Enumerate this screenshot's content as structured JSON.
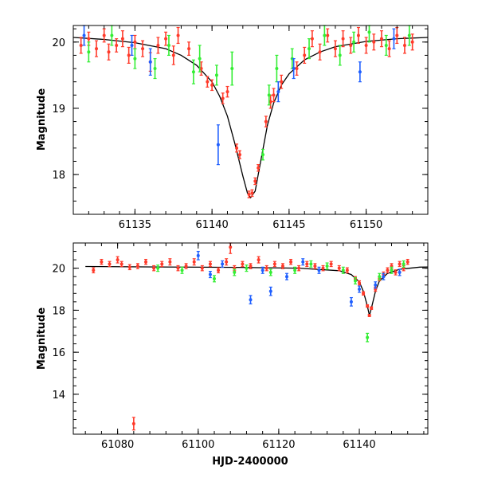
{
  "chart_data": [
    {
      "type": "scatter",
      "xlabel": "",
      "ylabel": "Magnitude",
      "xlim": [
        61131,
        61154
      ],
      "ylim": [
        20.25,
        17.4
      ],
      "y_inverted": true,
      "xticks": [
        61135,
        61140,
        61145,
        61150
      ],
      "yticks": [
        18,
        19,
        20
      ],
      "model_curve": {
        "description_free": true,
        "t0": 61142.5,
        "baseline": 20.1,
        "peak": 17.65,
        "x": [
          61131,
          61133,
          61135,
          61137,
          61138,
          61139,
          61140,
          61140.5,
          61141,
          61141.5,
          61142,
          61142.3,
          61142.5,
          61142.8,
          61143.2,
          61143.6,
          61144,
          61144.5,
          61145,
          61146,
          61147,
          61148,
          61150,
          61152,
          61154
        ],
        "y": [
          20.07,
          20.04,
          19.99,
          19.9,
          19.8,
          19.65,
          19.4,
          19.18,
          18.88,
          18.45,
          17.98,
          17.72,
          17.65,
          17.75,
          18.25,
          18.75,
          19.08,
          19.35,
          19.52,
          19.73,
          19.85,
          19.93,
          20.01,
          20.05,
          20.07
        ]
      },
      "series": [
        {
          "color": "#ff3a2a",
          "points": [
            [
              61131.5,
              19.95,
              0.12
            ],
            [
              61132.0,
              20.05,
              0.1
            ],
            [
              61132.5,
              19.9,
              0.12
            ],
            [
              61133.0,
              20.1,
              0.1
            ],
            [
              61133.3,
              19.85,
              0.12
            ],
            [
              61133.8,
              19.95,
              0.1
            ],
            [
              61134.2,
              20.05,
              0.12
            ],
            [
              61134.6,
              19.8,
              0.12
            ],
            [
              61135.0,
              20.0,
              0.1
            ],
            [
              61135.5,
              19.9,
              0.12
            ],
            [
              61136.0,
              19.7,
              0.14
            ],
            [
              61136.5,
              19.95,
              0.12
            ],
            [
              61137.0,
              20.05,
              0.1
            ],
            [
              61137.5,
              19.8,
              0.14
            ],
            [
              61137.8,
              20.1,
              0.12
            ],
            [
              61138.5,
              19.9,
              0.1
            ],
            [
              61139.3,
              19.6,
              0.1
            ],
            [
              61139.7,
              19.4,
              0.08
            ],
            [
              61140.0,
              19.35,
              0.08
            ],
            [
              61140.7,
              19.15,
              0.08
            ],
            [
              61141.0,
              19.25,
              0.08
            ],
            [
              61141.6,
              18.4,
              0.06
            ],
            [
              61141.8,
              18.3,
              0.06
            ],
            [
              61142.4,
              17.7,
              0.05
            ],
            [
              61142.6,
              17.72,
              0.05
            ],
            [
              61142.8,
              17.9,
              0.05
            ],
            [
              61143.0,
              18.1,
              0.05
            ],
            [
              61143.5,
              18.8,
              0.08
            ],
            [
              61143.8,
              19.1,
              0.1
            ],
            [
              61144.0,
              19.2,
              0.1
            ],
            [
              61144.5,
              19.4,
              0.1
            ],
            [
              61145.5,
              19.6,
              0.1
            ],
            [
              61146.0,
              19.8,
              0.12
            ],
            [
              61146.5,
              20.05,
              0.12
            ],
            [
              61147.0,
              19.85,
              0.12
            ],
            [
              61147.5,
              20.1,
              0.1
            ],
            [
              61148.0,
              19.9,
              0.12
            ],
            [
              61148.5,
              20.05,
              0.12
            ],
            [
              61149.0,
              19.95,
              0.12
            ],
            [
              61149.5,
              20.1,
              0.12
            ],
            [
              61150.0,
              19.95,
              0.12
            ],
            [
              61150.5,
              20.0,
              0.12
            ],
            [
              61151.0,
              20.05,
              0.12
            ],
            [
              61151.5,
              19.9,
              0.12
            ],
            [
              61152.0,
              20.1,
              0.12
            ],
            [
              61152.5,
              19.95,
              0.12
            ],
            [
              61153.0,
              20.0,
              0.12
            ]
          ]
        },
        {
          "color": "#33ee33",
          "points": [
            [
              61132.0,
              19.85,
              0.15
            ],
            [
              61133.5,
              20.1,
              0.15
            ],
            [
              61135.0,
              19.75,
              0.15
            ],
            [
              61136.3,
              19.6,
              0.15
            ],
            [
              61137.2,
              19.95,
              0.15
            ],
            [
              61138.8,
              19.55,
              0.18
            ],
            [
              61139.2,
              19.75,
              0.2
            ],
            [
              61140.3,
              19.5,
              0.15
            ],
            [
              61141.3,
              19.6,
              0.25
            ],
            [
              61143.3,
              18.3,
              0.08
            ],
            [
              61143.7,
              19.2,
              0.15
            ],
            [
              61144.2,
              19.6,
              0.2
            ],
            [
              61145.2,
              19.75,
              0.15
            ],
            [
              61146.3,
              19.9,
              0.15
            ],
            [
              61147.3,
              20.1,
              0.15
            ],
            [
              61148.3,
              19.8,
              0.15
            ],
            [
              61149.2,
              20.0,
              0.15
            ],
            [
              61150.2,
              20.15,
              0.15
            ],
            [
              61151.3,
              19.95,
              0.15
            ],
            [
              61152.8,
              20.1,
              0.15
            ]
          ]
        },
        {
          "color": "#1f5fff",
          "points": [
            [
              61131.7,
              20.1,
              0.15
            ],
            [
              61134.8,
              19.95,
              0.15
            ],
            [
              61136.0,
              19.7,
              0.2
            ],
            [
              61140.4,
              18.45,
              0.3
            ],
            [
              61144.3,
              19.25,
              0.15
            ],
            [
              61145.3,
              19.6,
              0.15
            ],
            [
              61149.6,
              19.55,
              0.15
            ],
            [
              61151.8,
              20.05,
              0.15
            ]
          ]
        }
      ]
    },
    {
      "type": "scatter",
      "xlabel": "HJD-2400000",
      "ylabel": "Magnitude",
      "xlim": [
        61069,
        61157
      ],
      "ylim": [
        21.2,
        12.1
      ],
      "y_inverted": true,
      "xticks": [
        61080,
        61100,
        61120,
        61140
      ],
      "yticks": [
        14,
        16,
        18,
        20
      ],
      "model_curve": {
        "x": [
          61072,
          61090,
          61110,
          61125,
          61135,
          61138,
          61140,
          61141,
          61142,
          61142.5,
          61143,
          61144,
          61145,
          61147,
          61150,
          61155,
          61157
        ],
        "y": [
          20.08,
          20.06,
          20.04,
          20.0,
          19.88,
          19.7,
          19.35,
          18.9,
          18.2,
          17.75,
          18.1,
          18.9,
          19.4,
          19.75,
          19.95,
          20.05,
          20.06
        ]
      },
      "series": [
        {
          "color": "#ff3a2a",
          "points": [
            [
              61074,
              19.9,
              0.12
            ],
            [
              61076,
              20.3,
              0.12
            ],
            [
              61078,
              20.2,
              0.12
            ],
            [
              61080,
              20.4,
              0.15
            ],
            [
              61081,
              20.2,
              0.12
            ],
            [
              61083,
              20.05,
              0.12
            ],
            [
              61084,
              12.6,
              0.3
            ],
            [
              61085,
              20.1,
              0.12
            ],
            [
              61087,
              20.3,
              0.12
            ],
            [
              61089,
              20.0,
              0.12
            ],
            [
              61091,
              20.2,
              0.12
            ],
            [
              61093,
              20.3,
              0.15
            ],
            [
              61095,
              20.0,
              0.12
            ],
            [
              61097,
              20.1,
              0.12
            ],
            [
              61099,
              20.3,
              0.15
            ],
            [
              61101,
              20.0,
              0.12
            ],
            [
              61103,
              20.2,
              0.12
            ],
            [
              61105,
              19.9,
              0.12
            ],
            [
              61107,
              20.3,
              0.15
            ],
            [
              61108,
              21.0,
              0.3
            ],
            [
              61109,
              20.0,
              0.12
            ],
            [
              61111,
              20.2,
              0.12
            ],
            [
              61113,
              20.1,
              0.12
            ],
            [
              61115,
              20.4,
              0.15
            ],
            [
              61117,
              20.0,
              0.12
            ],
            [
              61119,
              20.2,
              0.12
            ],
            [
              61121,
              20.1,
              0.12
            ],
            [
              61123,
              20.3,
              0.12
            ],
            [
              61125,
              20.0,
              0.12
            ],
            [
              61127,
              20.2,
              0.12
            ],
            [
              61129,
              20.1,
              0.12
            ],
            [
              61131,
              20.0,
              0.12
            ],
            [
              61133,
              20.2,
              0.12
            ],
            [
              61135,
              20.0,
              0.12
            ],
            [
              61137,
              19.9,
              0.12
            ],
            [
              61139,
              19.5,
              0.1
            ],
            [
              61140,
              19.3,
              0.1
            ],
            [
              61141,
              18.8,
              0.08
            ],
            [
              61142,
              18.2,
              0.06
            ],
            [
              61142.5,
              17.75,
              0.05
            ],
            [
              61143,
              18.1,
              0.06
            ],
            [
              61144,
              19.0,
              0.1
            ],
            [
              61145,
              19.5,
              0.1
            ],
            [
              61146,
              19.7,
              0.12
            ],
            [
              61147,
              19.9,
              0.12
            ],
            [
              61148,
              20.1,
              0.12
            ],
            [
              61149,
              19.8,
              0.12
            ],
            [
              61150,
              20.2,
              0.12
            ],
            [
              61151,
              20.0,
              0.12
            ],
            [
              61152,
              20.3,
              0.12
            ]
          ]
        },
        {
          "color": "#33ee33",
          "points": [
            [
              61090,
              20.0,
              0.15
            ],
            [
              61096,
              19.9,
              0.15
            ],
            [
              61104,
              19.5,
              0.15
            ],
            [
              61109,
              19.8,
              0.15
            ],
            [
              61112,
              20.0,
              0.15
            ],
            [
              61118,
              19.8,
              0.15
            ],
            [
              61124,
              19.9,
              0.15
            ],
            [
              61128,
              20.2,
              0.15
            ],
            [
              61132,
              20.1,
              0.15
            ],
            [
              61136,
              19.9,
              0.15
            ],
            [
              61139,
              19.4,
              0.15
            ],
            [
              61142,
              16.7,
              0.2
            ],
            [
              61145,
              19.6,
              0.15
            ],
            [
              61148,
              19.9,
              0.15
            ],
            [
              61151,
              20.2,
              0.15
            ]
          ]
        },
        {
          "color": "#1f5fff",
          "points": [
            [
              61100,
              20.6,
              0.2
            ],
            [
              61103,
              19.7,
              0.15
            ],
            [
              61106,
              20.2,
              0.15
            ],
            [
              61113,
              18.5,
              0.2
            ],
            [
              61116,
              19.9,
              0.15
            ],
            [
              61118,
              18.9,
              0.2
            ],
            [
              61122,
              19.6,
              0.15
            ],
            [
              61126,
              20.3,
              0.15
            ],
            [
              61130,
              19.9,
              0.15
            ],
            [
              61138,
              18.4,
              0.2
            ],
            [
              61140,
              19.0,
              0.15
            ],
            [
              61144,
              19.2,
              0.15
            ],
            [
              61146,
              19.6,
              0.15
            ],
            [
              61150,
              19.8,
              0.15
            ]
          ]
        }
      ]
    }
  ]
}
